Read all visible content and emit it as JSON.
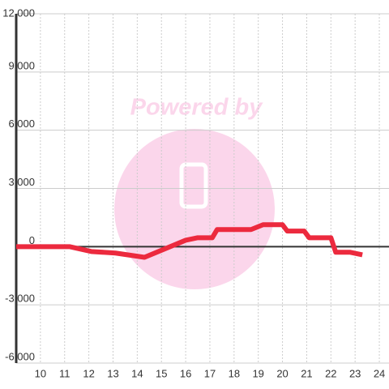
{
  "watermark": "Powered by",
  "chart_data": {
    "type": "line",
    "x": [
      9,
      11.2,
      12.1,
      13.1,
      14.3,
      16,
      16.5,
      17.1,
      17.3,
      18.7,
      19.2,
      20,
      20.2,
      20.9,
      21.1,
      22,
      22.2,
      22.8,
      23.3
    ],
    "series": [
      {
        "color": "#ec2a3e",
        "values": [
          0,
          0,
          -250,
          -330,
          -550,
          330,
          460,
          460,
          880,
          880,
          1130,
          1130,
          800,
          800,
          460,
          460,
          -290,
          -290,
          -420
        ]
      }
    ],
    "xlim": [
      9,
      24.4
    ],
    "xticks": [
      10,
      11,
      12,
      13,
      14,
      15,
      16,
      17,
      18,
      19,
      20,
      21,
      22,
      23,
      24
    ],
    "ylim": [
      -6000,
      12000
    ],
    "yticks": [
      {
        "value": -6000,
        "label": "-6,000"
      },
      {
        "value": -3000,
        "label": "-3,000"
      },
      0,
      {
        "value": 3000,
        "label": "3,000"
      },
      {
        "value": 6000,
        "label": "6,000"
      },
      {
        "value": 9000,
        "label": "9,000"
      },
      {
        "value": 12000,
        "label": "12,000"
      }
    ],
    "grid": true
  }
}
